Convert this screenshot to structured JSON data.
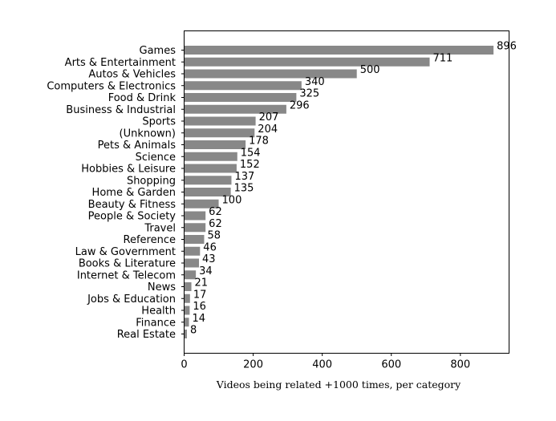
{
  "chart_data": {
    "type": "bar",
    "orientation": "horizontal",
    "title": "",
    "xlabel": "Videos being related +1000 times, per category",
    "ylabel": "",
    "xlim": [
      0,
      941
    ],
    "xticks": [
      0,
      200,
      400,
      600,
      800
    ],
    "grid": false,
    "bar_color": "#888888",
    "categories": [
      "Games",
      "Arts & Entertainment",
      "Autos & Vehicles",
      "Computers & Electronics",
      "Food & Drink",
      "Business & Industrial",
      "Sports",
      "(Unknown)",
      "Pets & Animals",
      "Science",
      "Hobbies & Leisure",
      "Shopping",
      "Home & Garden",
      "Beauty & Fitness",
      "People & Society",
      "Travel",
      "Reference",
      "Law & Government",
      "Books & Literature",
      "Internet & Telecom",
      "News",
      "Jobs & Education",
      "Health",
      "Finance",
      "Real Estate"
    ],
    "values": [
      896,
      711,
      500,
      340,
      325,
      296,
      207,
      204,
      178,
      154,
      152,
      137,
      135,
      100,
      62,
      62,
      58,
      46,
      43,
      34,
      21,
      17,
      16,
      14,
      8
    ]
  }
}
